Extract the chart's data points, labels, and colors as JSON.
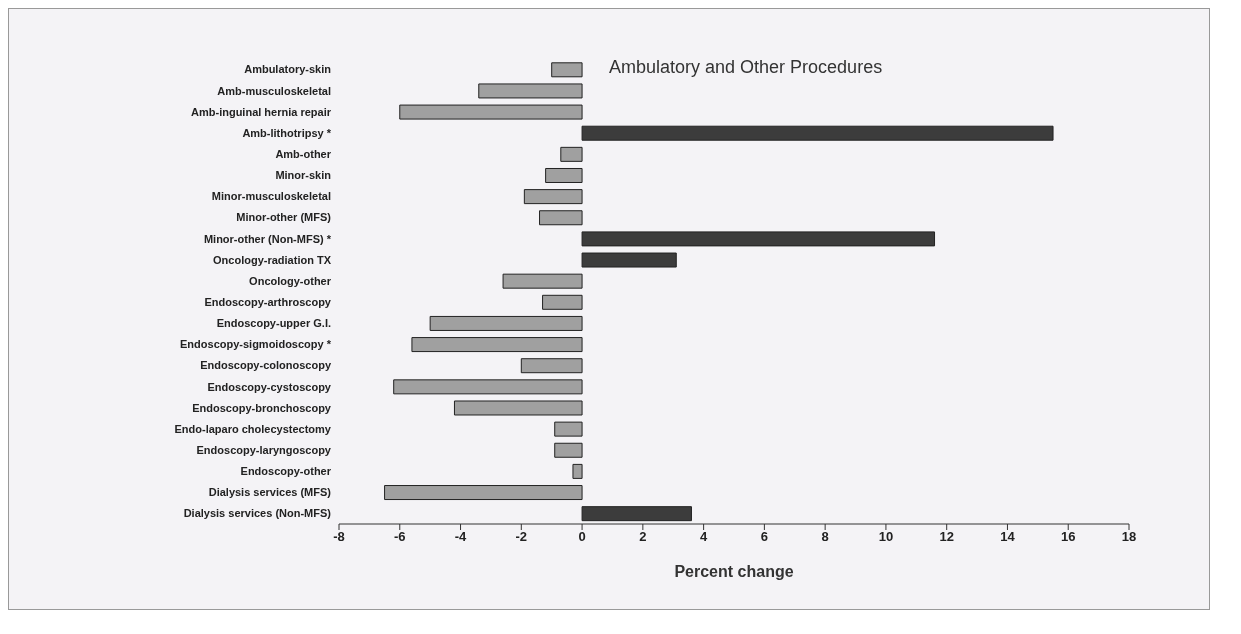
{
  "chart_data": {
    "type": "bar",
    "orientation": "horizontal",
    "title": "Ambulatory and Other Procedures",
    "xlabel": "Percent change",
    "categories": [
      "Ambulatory-skin",
      "Amb-musculoskeletal",
      "Amb-inguinal hernia repair",
      "Amb-lithotripsy *",
      "Amb-other",
      "Minor-skin",
      "Minor-musculoskeletal",
      "Minor-other (MFS)",
      "Minor-other (Non-MFS) *",
      "Oncology-radiation TX",
      "Oncology-other",
      "Endoscopy-arthroscopy",
      "Endoscopy-upper G.I.",
      "Endoscopy-sigmoidoscopy *",
      "Endoscopy-colonoscopy",
      "Endoscopy-cystoscopy",
      "Endoscopy-bronchoscopy",
      "Endo-laparo cholecystectomy",
      "Endoscopy-laryngoscopy",
      "Endoscopy-other",
      "Dialysis services (MFS)",
      "Dialysis services (Non-MFS)"
    ],
    "values": [
      -1.0,
      -3.4,
      -6.0,
      15.5,
      -0.7,
      -1.2,
      -1.9,
      -1.4,
      11.6,
      3.1,
      -2.6,
      -1.3,
      -5.0,
      -5.6,
      -2.0,
      -6.2,
      -4.2,
      -0.9,
      -0.9,
      -0.3,
      -6.5,
      3.6
    ],
    "colors": [
      "#a0a0a0",
      "#a0a0a0",
      "#a0a0a0",
      "#3c3c3c",
      "#a0a0a0",
      "#a0a0a0",
      "#a0a0a0",
      "#a0a0a0",
      "#3c3c3c",
      "#3c3c3c",
      "#a0a0a0",
      "#a0a0a0",
      "#a0a0a0",
      "#a0a0a0",
      "#a0a0a0",
      "#a0a0a0",
      "#a0a0a0",
      "#a0a0a0",
      "#a0a0a0",
      "#a0a0a0",
      "#a0a0a0",
      "#3c3c3c"
    ],
    "xlim": [
      -8,
      18
    ],
    "xticks": [
      -8,
      -6,
      -4,
      -2,
      0,
      2,
      4,
      6,
      8,
      10,
      12,
      14,
      16,
      18
    ],
    "grid": false,
    "legend": false
  }
}
